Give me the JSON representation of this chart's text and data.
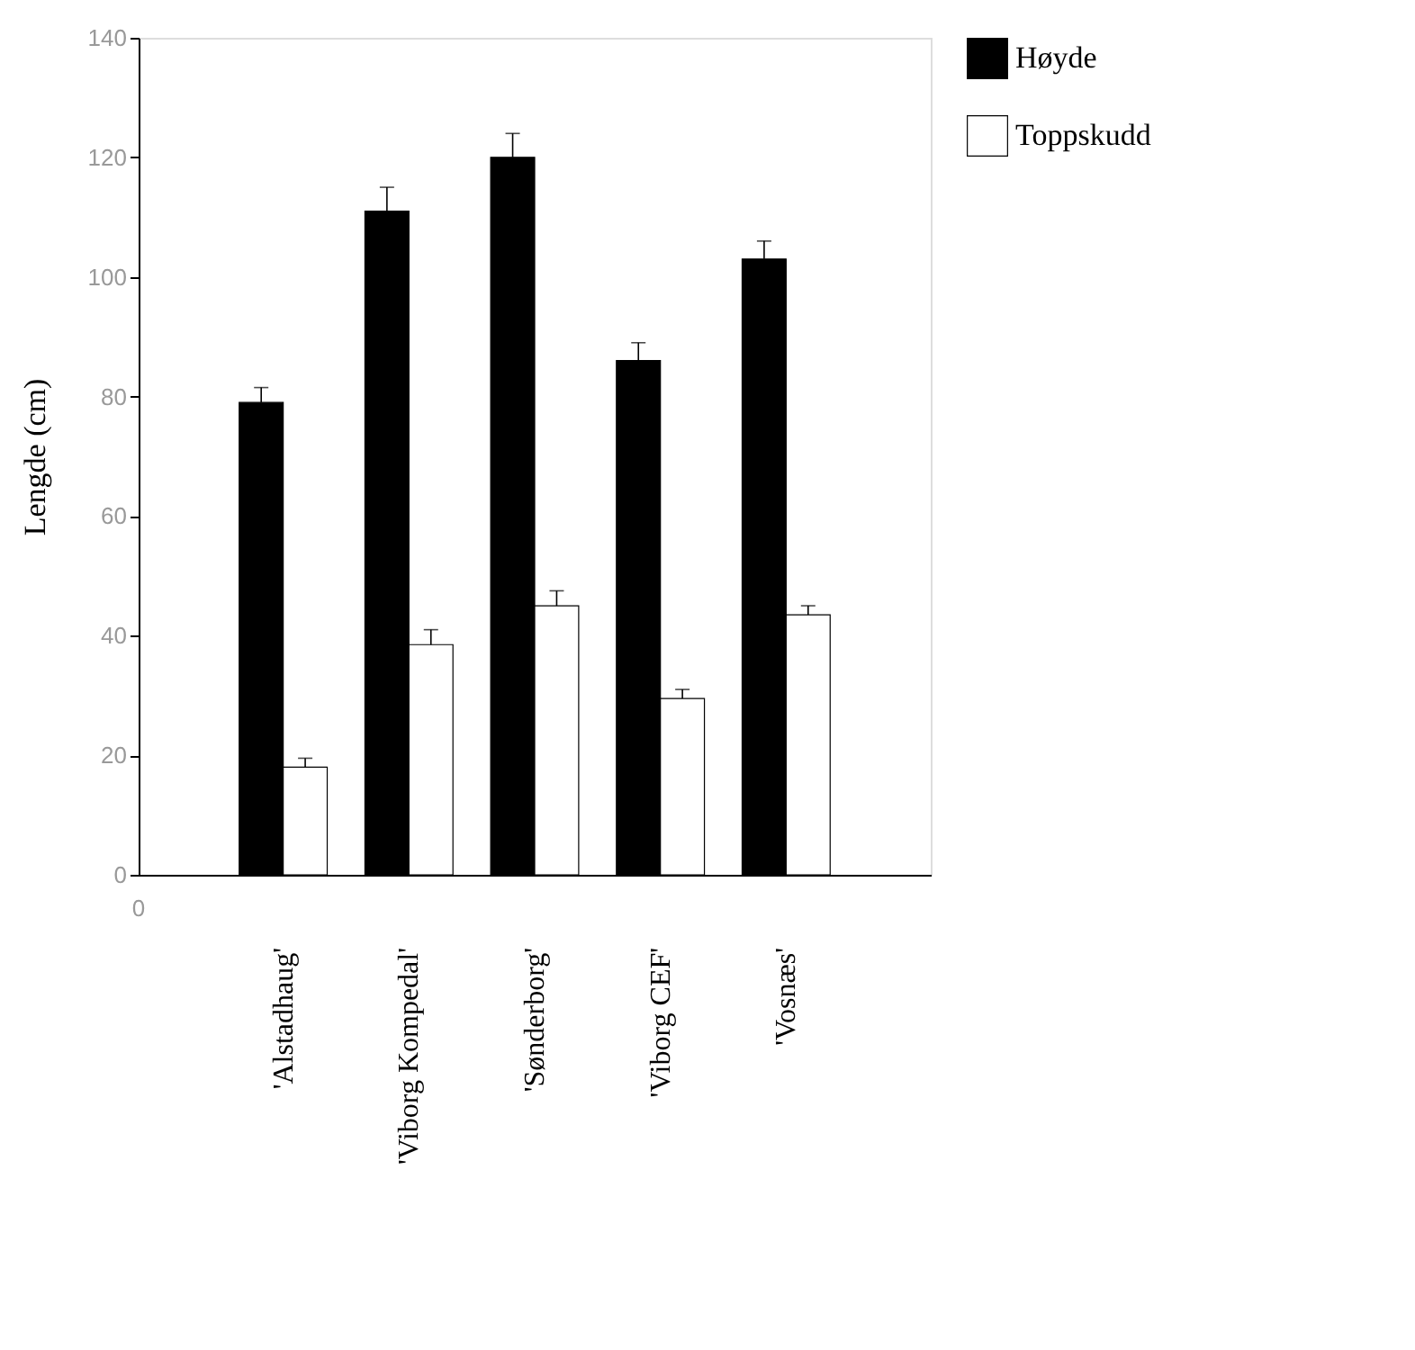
{
  "chart_data": {
    "type": "bar",
    "ylabel": "Lengde (cm)",
    "categories": [
      "'Alstadhaug'",
      "'Viborg Kompedal'",
      "'Sønderborg'",
      "'Viborg CEF'",
      "'Vosnæs'"
    ],
    "series": [
      {
        "name": "Høyde",
        "color": "#000000",
        "values": [
          79,
          111,
          120,
          86,
          103
        ],
        "errors": [
          2.5,
          4,
          4,
          3,
          3
        ]
      },
      {
        "name": "Toppskudd",
        "color": "#ffffff",
        "values": [
          18,
          38.5,
          45,
          29.5,
          43.5
        ],
        "errors": [
          1.5,
          2.5,
          2.5,
          1.5,
          1.5
        ]
      }
    ],
    "ylim": [
      0,
      140
    ],
    "yticks": [
      0,
      20,
      40,
      60,
      80,
      100,
      120,
      140
    ],
    "annotations": [
      "0"
    ],
    "grid": false,
    "legend": "top right"
  }
}
